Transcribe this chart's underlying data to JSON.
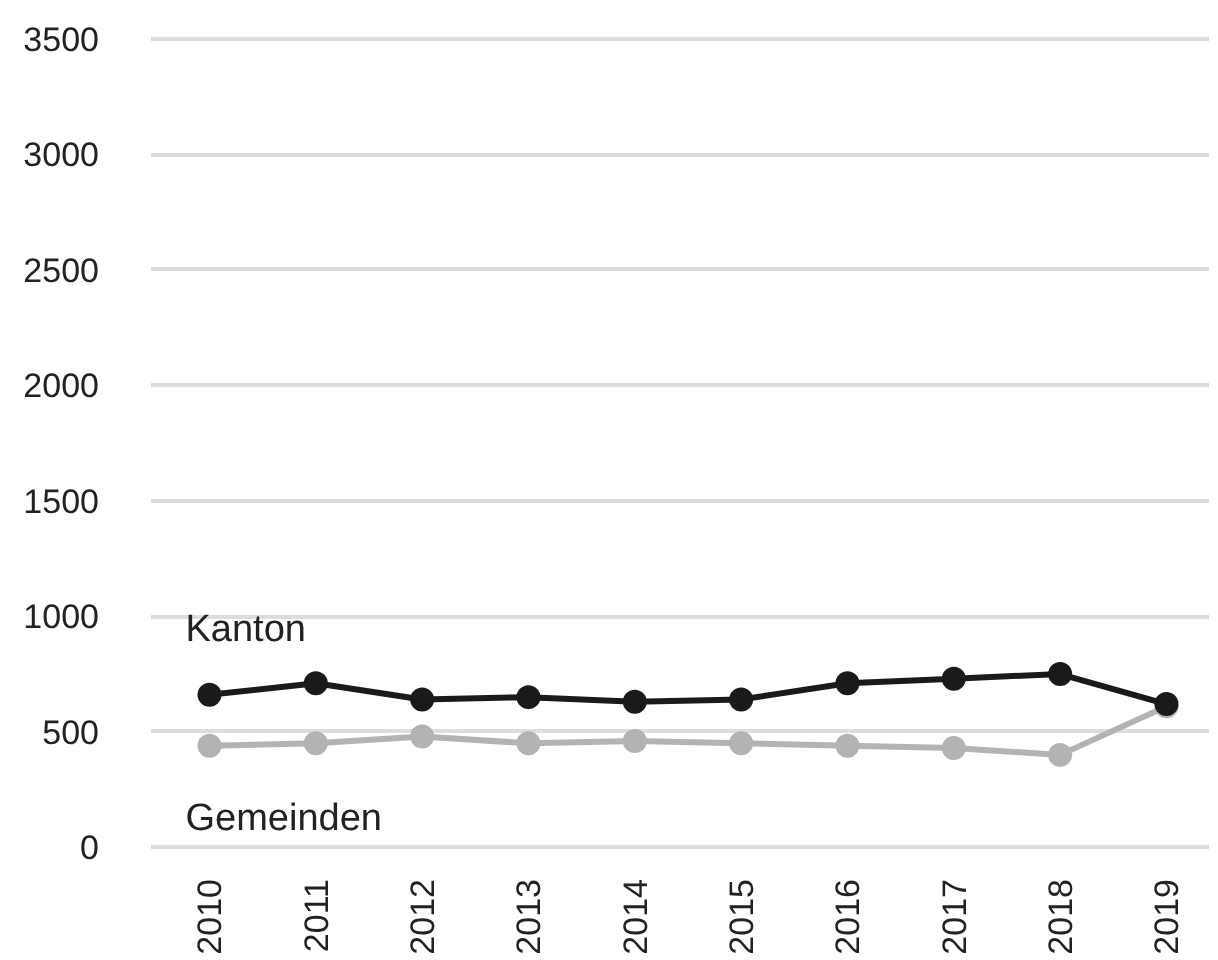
{
  "chart_data": {
    "type": "line",
    "categories": [
      "2010",
      "2011",
      "2012",
      "2013",
      "2014",
      "2015",
      "2016",
      "2017",
      "2018",
      "2019"
    ],
    "series": [
      {
        "name": "Kanton",
        "color": "#1a1a1a",
        "values": [
          660,
          710,
          640,
          650,
          630,
          640,
          710,
          730,
          750,
          620
        ]
      },
      {
        "name": "Gemeinden",
        "color": "#b3b3b3",
        "values": [
          440,
          450,
          480,
          450,
          460,
          450,
          440,
          430,
          400,
          610
        ]
      }
    ],
    "ylim": [
      0,
      3500
    ],
    "yticks": [
      0,
      500,
      1000,
      1500,
      2000,
      2500,
      3000,
      3500
    ],
    "grid": "y",
    "marker": "circle",
    "line_style": "solid"
  }
}
